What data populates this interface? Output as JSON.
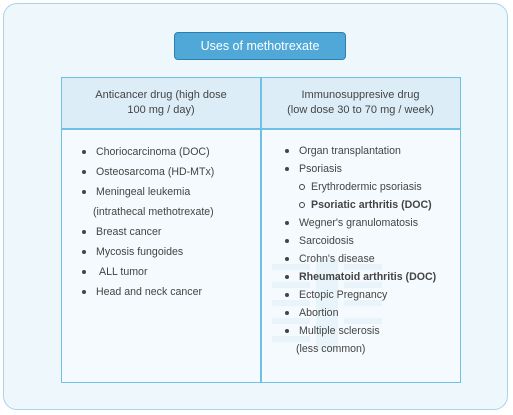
{
  "title": "Uses of methotrexate",
  "left_header": {
    "line1": "Anticancer drug (high dose",
    "line2": "100 mg / day)"
  },
  "right_header": {
    "line1": "Immunosuppresive drug",
    "line2": "(low dose 30 to 70 mg / week)"
  },
  "left_items": [
    {
      "text": "Choriocarcinoma (DOC)"
    },
    {
      "text": "Osteosarcoma (HD-MTx)"
    },
    {
      "text": "Meningeal leukemia"
    },
    {
      "text": "(intrathecal methotrexate)"
    },
    {
      "text": "Breast cancer"
    },
    {
      "text": "Mycosis fungoides"
    },
    {
      "text": "ALL tumor"
    },
    {
      "text": "Head and neck cancer"
    }
  ],
  "right_items": [
    {
      "text": "Organ transplantation"
    },
    {
      "text": "Psoriasis"
    },
    {
      "text": "Erythrodermic psoriasis"
    },
    {
      "text": "Psoriatic arthritis (DOC)"
    },
    {
      "text": "Wegner's granulomatosis"
    },
    {
      "text": "Sarcoidosis"
    },
    {
      "text": "Crohn's disease"
    },
    {
      "text": "Rheumatoid arthritis (DOC)"
    },
    {
      "text": "Ectopic Pregnancy"
    },
    {
      "text": "Abortion"
    },
    {
      "text": "Multiple sclerosis"
    },
    {
      "text": "(less common)"
    }
  ],
  "colors": {
    "accent": "#4fa8d8",
    "border": "#6ec0e6",
    "background": "#eef7fc"
  }
}
